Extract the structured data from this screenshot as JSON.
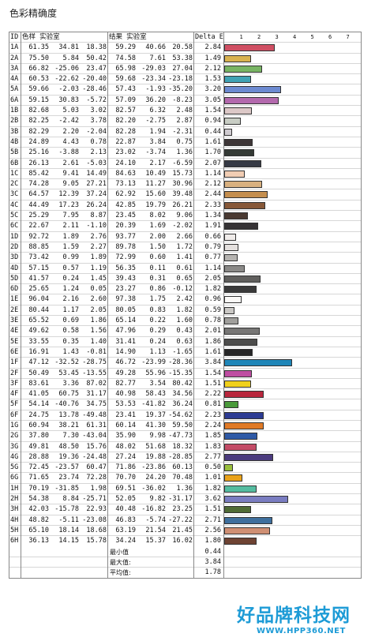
{
  "title": "色彩精确度",
  "headers": {
    "id": "ID",
    "sample": "色样 实验室",
    "result": "结果 实验室",
    "delta": "Delta E",
    "scale": [
      "1",
      "2",
      "3",
      "4",
      "5",
      "6",
      "7"
    ]
  },
  "rows": [
    {
      "id": "1A",
      "s": [
        "61.35",
        "34.81",
        "18.38"
      ],
      "r": [
        "59.29",
        "40.66",
        "20.58"
      ],
      "de": "2.84",
      "color": "#d04f63"
    },
    {
      "id": "2A",
      "s": [
        "75.50",
        "5.84",
        "50.42"
      ],
      "r": [
        "74.58",
        "7.61",
        "53.38"
      ],
      "de": "1.49",
      "color": "#d8b24f"
    },
    {
      "id": "3A",
      "s": [
        "66.82",
        "-25.06",
        "23.47"
      ],
      "r": [
        "65.98",
        "-29.03",
        "27.04"
      ],
      "de": "2.12",
      "color": "#78b463"
    },
    {
      "id": "4A",
      "s": [
        "60.53",
        "-22.62",
        "-20.40"
      ],
      "r": [
        "59.68",
        "-23.34",
        "-23.18"
      ],
      "de": "1.53",
      "color": "#3fa2b4"
    },
    {
      "id": "5A",
      "s": [
        "59.66",
        "-2.03",
        "-28.46"
      ],
      "r": [
        "57.43",
        "-1.93",
        "-35.20"
      ],
      "de": "3.20",
      "color": "#6c8ad1"
    },
    {
      "id": "6A",
      "s": [
        "59.15",
        "30.83",
        "-5.72"
      ],
      "r": [
        "57.09",
        "36.20",
        "-8.23"
      ],
      "de": "3.05",
      "color": "#b369ad"
    },
    {
      "id": "1B",
      "s": [
        "82.68",
        "5.03",
        "3.02"
      ],
      "r": [
        "82.57",
        "6.32",
        "2.48"
      ],
      "de": "1.54",
      "color": "#dcc8c7"
    },
    {
      "id": "2B",
      "s": [
        "82.25",
        "-2.42",
        "3.78"
      ],
      "r": [
        "82.20",
        "-2.75",
        "2.87"
      ],
      "de": "0.94",
      "color": "#c8cdc4"
    },
    {
      "id": "3B",
      "s": [
        "82.29",
        "2.20",
        "-2.04"
      ],
      "r": [
        "82.28",
        "1.94",
        "-2.31"
      ],
      "de": "0.44",
      "color": "#cfcbd0"
    },
    {
      "id": "4B",
      "s": [
        "24.89",
        "4.43",
        "0.78"
      ],
      "r": [
        "22.87",
        "3.84",
        "0.75"
      ],
      "de": "1.61",
      "color": "#3e3637"
    },
    {
      "id": "5B",
      "s": [
        "25.16",
        "-3.88",
        "2.13"
      ],
      "r": [
        "23.02",
        "-3.74",
        "1.36"
      ],
      "de": "1.70",
      "color": "#343a35"
    },
    {
      "id": "6B",
      "s": [
        "26.13",
        "2.61",
        "-5.03"
      ],
      "r": [
        "24.10",
        "2.17",
        "-6.59"
      ],
      "de": "2.07",
      "color": "#363a45"
    },
    {
      "id": "1C",
      "s": [
        "85.42",
        "9.41",
        "14.49"
      ],
      "r": [
        "84.63",
        "10.49",
        "15.73"
      ],
      "de": "1.14",
      "color": "#f1cdb3"
    },
    {
      "id": "2C",
      "s": [
        "74.28",
        "9.05",
        "27.21"
      ],
      "r": [
        "73.13",
        "11.27",
        "30.96"
      ],
      "de": "2.12",
      "color": "#d8b07f"
    },
    {
      "id": "3C",
      "s": [
        "64.57",
        "12.39",
        "37.24"
      ],
      "r": [
        "62.92",
        "15.60",
        "39.48"
      ],
      "de": "2.44",
      "color": "#c48e4e"
    },
    {
      "id": "4C",
      "s": [
        "44.49",
        "17.23",
        "26.24"
      ],
      "r": [
        "42.85",
        "19.79",
        "26.21"
      ],
      "de": "2.33",
      "color": "#875838"
    },
    {
      "id": "5C",
      "s": [
        "25.29",
        "7.95",
        "8.87"
      ],
      "r": [
        "23.45",
        "8.02",
        "9.06"
      ],
      "de": "1.34",
      "color": "#4a3a32"
    },
    {
      "id": "6C",
      "s": [
        "22.67",
        "2.11",
        "-1.10"
      ],
      "r": [
        "20.39",
        "1.69",
        "-2.02"
      ],
      "de": "1.91",
      "color": "#363335"
    },
    {
      "id": "1D",
      "s": [
        "92.72",
        "1.89",
        "2.76"
      ],
      "r": [
        "93.77",
        "2.00",
        "2.66"
      ],
      "de": "0.66",
      "color": "#f0ecea"
    },
    {
      "id": "2D",
      "s": [
        "88.85",
        "1.59",
        "2.27"
      ],
      "r": [
        "89.78",
        "1.50",
        "1.72"
      ],
      "de": "0.79",
      "color": "#e4e0de"
    },
    {
      "id": "3D",
      "s": [
        "73.42",
        "0.99",
        "1.89"
      ],
      "r": [
        "72.99",
        "0.60",
        "1.41"
      ],
      "de": "0.77",
      "color": "#b5b3b0"
    },
    {
      "id": "4D",
      "s": [
        "57.15",
        "0.57",
        "1.19"
      ],
      "r": [
        "56.35",
        "0.11",
        "0.61"
      ],
      "de": "1.14",
      "color": "#8a8987"
    },
    {
      "id": "5D",
      "s": [
        "41.57",
        "0.24",
        "1.45"
      ],
      "r": [
        "39.43",
        "0.31",
        "0.65"
      ],
      "de": "2.05",
      "color": "#605f5d"
    },
    {
      "id": "6D",
      "s": [
        "25.65",
        "1.24",
        "0.05"
      ],
      "r": [
        "23.27",
        "0.86",
        "-0.12"
      ],
      "de": "1.82",
      "color": "#3a3a3a"
    },
    {
      "id": "1E",
      "s": [
        "96.04",
        "2.16",
        "2.60"
      ],
      "r": [
        "97.38",
        "1.75",
        "2.42"
      ],
      "de": "0.96",
      "color": "#fbf9f7"
    },
    {
      "id": "2E",
      "s": [
        "80.44",
        "1.17",
        "2.05"
      ],
      "r": [
        "80.05",
        "0.83",
        "1.82"
      ],
      "de": "0.59",
      "color": "#cac8c5"
    },
    {
      "id": "3E",
      "s": [
        "65.52",
        "0.69",
        "1.86"
      ],
      "r": [
        "65.14",
        "0.22",
        "1.60"
      ],
      "de": "0.78",
      "color": "#a09f9c"
    },
    {
      "id": "4E",
      "s": [
        "49.62",
        "0.58",
        "1.56"
      ],
      "r": [
        "47.96",
        "0.29",
        "0.43"
      ],
      "de": "2.01",
      "color": "#777675"
    },
    {
      "id": "5E",
      "s": [
        "33.55",
        "0.35",
        "1.40"
      ],
      "r": [
        "31.41",
        "0.24",
        "0.63"
      ],
      "de": "1.86",
      "color": "#4d4d4c"
    },
    {
      "id": "6E",
      "s": [
        "16.91",
        "1.43",
        "-0.81"
      ],
      "r": [
        "14.90",
        "1.13",
        "-1.65"
      ],
      "de": "1.61",
      "color": "#262627"
    },
    {
      "id": "1F",
      "s": [
        "47.12",
        "-32.52",
        "-28.75"
      ],
      "r": [
        "46.72",
        "-23.99",
        "-28.36"
      ],
      "de": "3.84",
      "color": "#1f86b8"
    },
    {
      "id": "2F",
      "s": [
        "50.49",
        "53.45",
        "-13.55"
      ],
      "r": [
        "49.28",
        "55.96",
        "-15.35"
      ],
      "de": "1.54",
      "color": "#be4da2"
    },
    {
      "id": "3F",
      "s": [
        "83.61",
        "3.36",
        "87.02"
      ],
      "r": [
        "82.77",
        "3.54",
        "80.42"
      ],
      "de": "1.51",
      "color": "#f0d01b"
    },
    {
      "id": "4F",
      "s": [
        "41.05",
        "60.75",
        "31.17"
      ],
      "r": [
        "40.98",
        "58.43",
        "34.56"
      ],
      "de": "2.22",
      "color": "#b8263c"
    },
    {
      "id": "5F",
      "s": [
        "54.14",
        "-40.76",
        "34.75"
      ],
      "r": [
        "53.53",
        "-41.82",
        "36.24"
      ],
      "de": "0.81",
      "color": "#4a9a3b"
    },
    {
      "id": "6F",
      "s": [
        "24.75",
        "13.78",
        "-49.48"
      ],
      "r": [
        "23.41",
        "19.37",
        "-54.62"
      ],
      "de": "2.23",
      "color": "#2c3b93"
    },
    {
      "id": "1G",
      "s": [
        "60.94",
        "38.21",
        "61.31"
      ],
      "r": [
        "60.14",
        "41.30",
        "59.50"
      ],
      "de": "2.24",
      "color": "#e07a26"
    },
    {
      "id": "2G",
      "s": [
        "37.80",
        "7.30",
        "-43.04"
      ],
      "r": [
        "35.90",
        "9.98",
        "-47.73"
      ],
      "de": "1.85",
      "color": "#2f5aa6"
    },
    {
      "id": "3G",
      "s": [
        "49.81",
        "48.50",
        "15.76"
      ],
      "r": [
        "48.02",
        "51.68",
        "18.32"
      ],
      "de": "1.83",
      "color": "#c34b66"
    },
    {
      "id": "4G",
      "s": [
        "28.88",
        "19.36",
        "-24.48"
      ],
      "r": [
        "27.24",
        "19.88",
        "-28.85"
      ],
      "de": "2.77",
      "color": "#4b3b7e"
    },
    {
      "id": "5G",
      "s": [
        "72.45",
        "-23.57",
        "60.47"
      ],
      "r": [
        "71.86",
        "-23.86",
        "60.13"
      ],
      "de": "0.50",
      "color": "#9abf3c"
    },
    {
      "id": "6G",
      "s": [
        "71.65",
        "23.74",
        "72.28"
      ],
      "r": [
        "70.70",
        "24.20",
        "70.48"
      ],
      "de": "1.01",
      "color": "#e9a21a"
    },
    {
      "id": "1H",
      "s": [
        "70.19",
        "-31.85",
        "1.98"
      ],
      "r": [
        "69.51",
        "-36.02",
        "1.36"
      ],
      "de": "1.82",
      "color": "#54bca0"
    },
    {
      "id": "2H",
      "s": [
        "54.38",
        "8.84",
        "-25.71"
      ],
      "r": [
        "52.05",
        "9.82",
        "-31.17"
      ],
      "de": "3.62",
      "color": "#7a7dc1"
    },
    {
      "id": "3H",
      "s": [
        "42.03",
        "-15.78",
        "22.93"
      ],
      "r": [
        "40.48",
        "-16.82",
        "23.25"
      ],
      "de": "1.51",
      "color": "#4f6b35"
    },
    {
      "id": "4H",
      "s": [
        "48.82",
        "-5.11",
        "-23.08"
      ],
      "r": [
        "46.83",
        "-5.74",
        "-27.22"
      ],
      "de": "2.71",
      "color": "#3e6f9d"
    },
    {
      "id": "5H",
      "s": [
        "65.10",
        "18.14",
        "18.68"
      ],
      "r": [
        "63.19",
        "21.54",
        "21.45"
      ],
      "de": "2.56",
      "color": "#cf8f73"
    },
    {
      "id": "6H",
      "s": [
        "36.13",
        "14.15",
        "15.78"
      ],
      "r": [
        "34.24",
        "15.37",
        "16.02"
      ],
      "de": "1.80",
      "color": "#6e4333"
    }
  ],
  "summary": [
    {
      "label": "最小值",
      "value": "0.44"
    },
    {
      "label": "最大值:",
      "value": "3.84"
    },
    {
      "label": "平均值:",
      "value": "1.78"
    }
  ],
  "watermark": {
    "logo": "好品牌科技网",
    "url": "WWW.HPP360.NET"
  }
}
